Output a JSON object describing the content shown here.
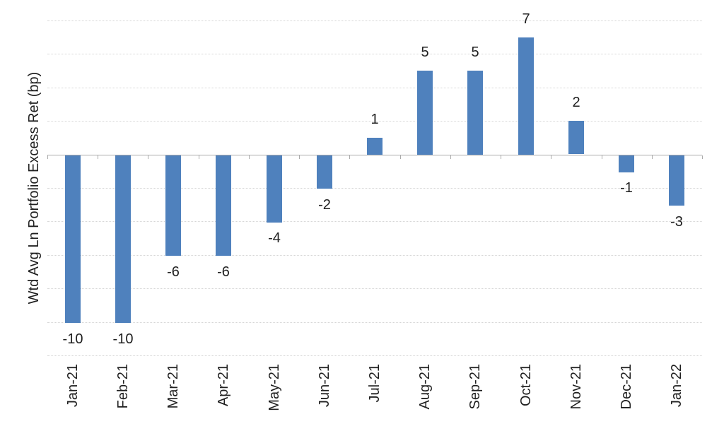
{
  "chart_data": {
    "type": "bar",
    "title": "",
    "xlabel": "",
    "ylabel": "Wtd Avg Ln Portfolio Excess Ret (bp)",
    "categories": [
      "Jan-21",
      "Feb-21",
      "Mar-21",
      "Apr-21",
      "May-21",
      "Jun-21",
      "Jul-21",
      "Aug-21",
      "Sep-21",
      "Oct-21",
      "Nov-21",
      "Dec-21",
      "Jan-22"
    ],
    "values": [
      -10,
      -10,
      -6,
      -6,
      -4,
      -2,
      1,
      5,
      5,
      7,
      2,
      -1,
      -3
    ],
    "data_labels_visible": true,
    "ylim": [
      -12,
      8
    ],
    "grid_step": 2,
    "grid": true,
    "legend": false,
    "colors": {
      "bar": "#4F81BD",
      "gridline": "#D6D6D6",
      "axis_line": "#ABABAB",
      "text": "#202020"
    }
  }
}
